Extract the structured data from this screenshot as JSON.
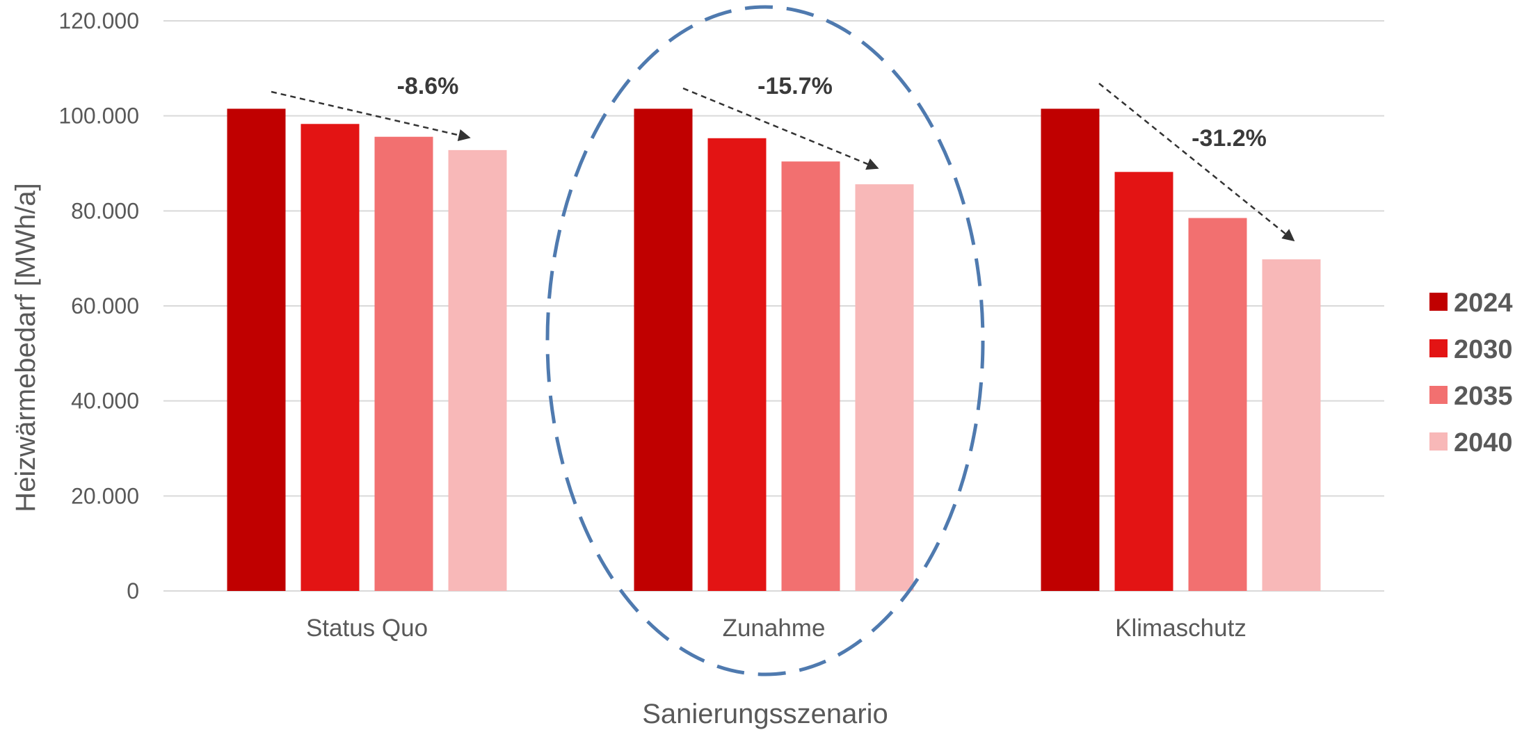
{
  "chart_data": {
    "type": "bar",
    "title": "",
    "xlabel": "Sanierungsszenario",
    "ylabel": "Heizwärmebedarf [MWh/a]",
    "ylim": [
      0,
      120000
    ],
    "yticks": [
      {
        "value": 0,
        "label": "0"
      },
      {
        "value": 20000,
        "label": "20.000"
      },
      {
        "value": 40000,
        "label": "40.000"
      },
      {
        "value": 60000,
        "label": "60.000"
      },
      {
        "value": 80000,
        "label": "80.000"
      },
      {
        "value": 100000,
        "label": "100.000"
      },
      {
        "value": 120000,
        "label": "120.000"
      }
    ],
    "categories": [
      "Status Quo",
      "Zunahme",
      "Klimaschutz"
    ],
    "series": [
      {
        "name": "2024",
        "color": "#C00000",
        "values": [
          101500,
          101500,
          101500
        ]
      },
      {
        "name": "2030",
        "color": "#E31414",
        "values": [
          98300,
          95300,
          88200
        ]
      },
      {
        "name": "2035",
        "color": "#F27070",
        "values": [
          95600,
          90400,
          78500
        ]
      },
      {
        "name": "2040",
        "color": "#F8B8B8",
        "values": [
          92800,
          85600,
          69800
        ]
      }
    ],
    "annotations": [
      "-8.6%",
      "-15.7%",
      "-31.2%"
    ],
    "highlight": {
      "category": "Zunahme",
      "shape": "dashed ellipse",
      "color": "#4F7AAF"
    },
    "grid": true,
    "legend": "right"
  }
}
